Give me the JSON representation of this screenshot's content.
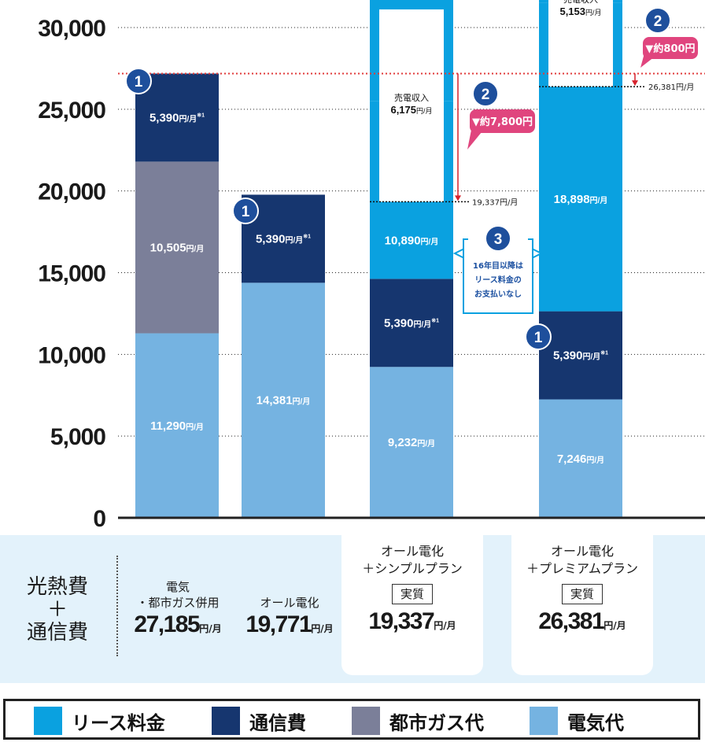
{
  "chart_data": {
    "type": "stacked-bar",
    "ylim": [
      0,
      30000
    ],
    "yticks": [
      "0",
      "5,000",
      "10,000",
      "15,000",
      "20,000",
      "25,000",
      "30,000"
    ],
    "ytick_values": [
      0,
      5000,
      10000,
      15000,
      20000,
      25000,
      30000
    ],
    "series_colors": {
      "lease": "#0aa1e0",
      "comm": "#16366f",
      "gas": "#7b7f99",
      "elec": "#75b3e1"
    },
    "bars": [
      {
        "name": "電気・都市ガス併用",
        "segments": [
          {
            "series": "elec",
            "value": 11290,
            "label": "11,290",
            "unit": "円/月"
          },
          {
            "series": "gas",
            "value": 10505,
            "label": "10,505",
            "unit": "円/月"
          },
          {
            "series": "comm",
            "value": 5390,
            "label": "5,390",
            "unit": "円/月",
            "note": "※1"
          }
        ],
        "total": 27185
      },
      {
        "name": "オール電化",
        "segments": [
          {
            "series": "elec",
            "value": 14381,
            "label": "14,381",
            "unit": "円/月"
          },
          {
            "series": "comm",
            "value": 5390,
            "label": "5,390",
            "unit": "円/月",
            "note": "※1"
          }
        ],
        "total": 19771
      },
      {
        "name": "オール電化＋シンプルプラン",
        "segments": [
          {
            "series": "elec",
            "value": 9232,
            "label": "9,232",
            "unit": "円/月"
          },
          {
            "series": "comm",
            "value": 5390,
            "label": "5,390",
            "unit": "円/月",
            "note": "※1"
          },
          {
            "series": "lease",
            "value": 10890,
            "label": "10,890",
            "unit": "円/月"
          }
        ],
        "sale_income": {
          "value": 6175,
          "title": "売電収入",
          "label": "6,175",
          "unit": "円/月"
        },
        "net": 19337,
        "net_label": "19,337円/月",
        "saving_label": "▼約7,800円"
      },
      {
        "name": "オール電化＋プレミアムプラン",
        "segments": [
          {
            "series": "elec",
            "value": 7246,
            "label": "7,246",
            "unit": "円/月"
          },
          {
            "series": "comm",
            "value": 5390,
            "label": "5,390",
            "unit": "円/月",
            "note": "※1"
          },
          {
            "series": "lease",
            "value": 18898,
            "label": "18,898",
            "unit": "円/月"
          }
        ],
        "sale_income": {
          "value": 5153,
          "title": "売電収入",
          "label": "5,153",
          "unit": "円/月"
        },
        "net": 26381,
        "net_label": "26,381円/月",
        "saving_label": "▼約800円"
      }
    ],
    "reference_line": 27185,
    "badges": [
      "1",
      "1",
      "2",
      "1",
      "2",
      "3"
    ],
    "callout_3": [
      "16年目以降は",
      "リース料金の",
      "お支払いなし"
    ]
  },
  "info": {
    "row_label": [
      "光熱費",
      "＋",
      "通信費"
    ],
    "columns": [
      {
        "name_lines": [
          "電気",
          "・都市ガス併用"
        ],
        "value": "27,185",
        "unit": "円/月"
      },
      {
        "name_lines": [
          "オール電化"
        ],
        "value": "19,771",
        "unit": "円/月"
      },
      {
        "name_lines": [
          "オール電化",
          "＋シンプルプラン"
        ],
        "badge": "実質",
        "value": "19,337",
        "unit": "円/月"
      },
      {
        "name_lines": [
          "オール電化",
          "＋プレミアムプラン"
        ],
        "badge": "実質",
        "value": "26,381",
        "unit": "円/月"
      }
    ]
  },
  "legend": [
    {
      "label": "リース料金",
      "color": "#0aa1e0"
    },
    {
      "label": "通信費",
      "color": "#16366f"
    },
    {
      "label": "都市ガス代",
      "color": "#7b7f99"
    },
    {
      "label": "電気代",
      "color": "#75b3e1"
    }
  ]
}
